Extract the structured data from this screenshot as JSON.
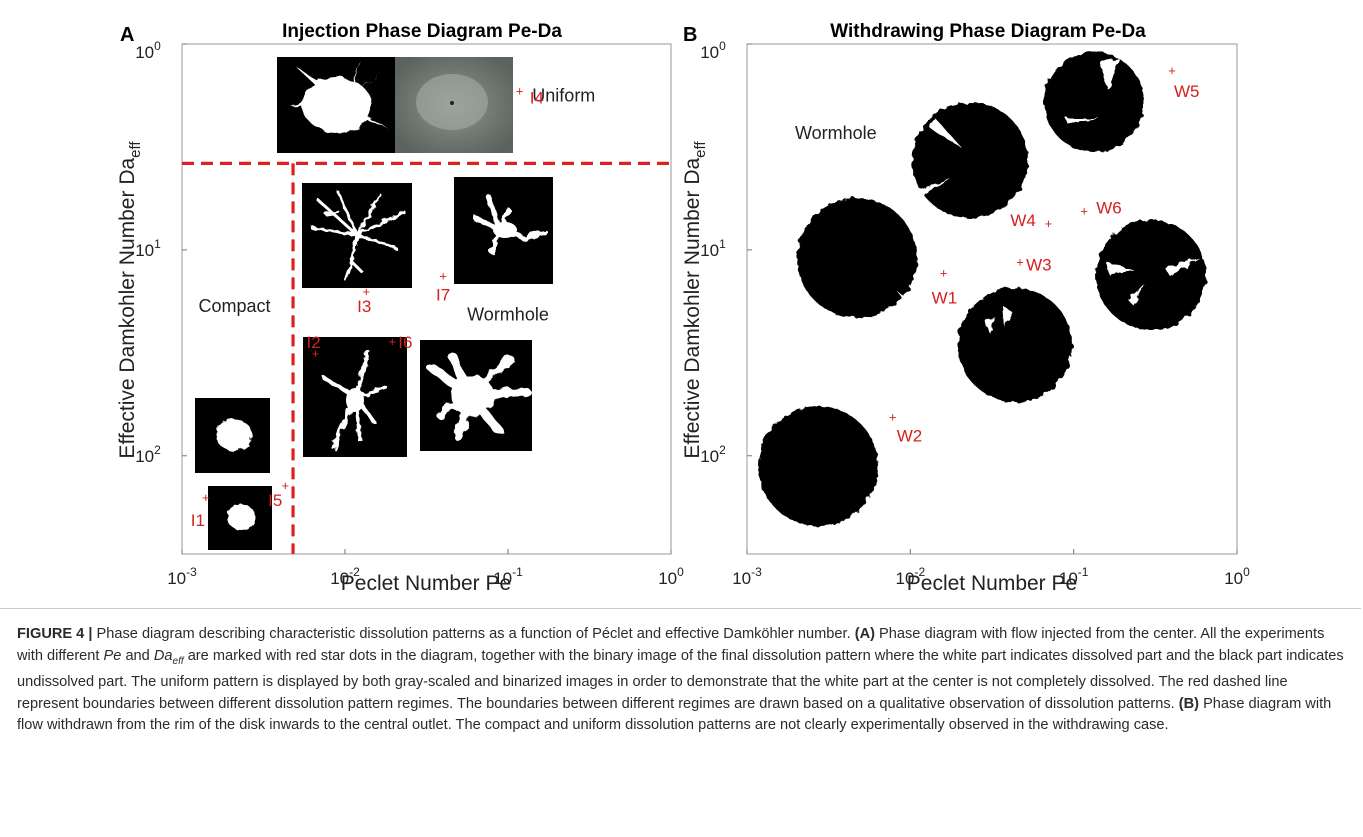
{
  "chart_data": [
    {
      "type": "scatter",
      "panel_label": "A",
      "title": "Injection Phase Diagram Pe-Da",
      "xlabel": "Peclet Number Pe",
      "ylabel": "Effective Damkohler Number Da",
      "ylabel_sub": "eff",
      "x_scale": "log",
      "y_scale": "log",
      "y_inverted": true,
      "xlim": [
        0.001,
        1
      ],
      "ylim": [
        1,
        300
      ],
      "x_ticks": [
        {
          "base": "10",
          "exp": "-3"
        },
        {
          "base": "10",
          "exp": "-2"
        },
        {
          "base": "10",
          "exp": "-1"
        },
        {
          "base": "10",
          "exp": "0"
        }
      ],
      "y_ticks": [
        {
          "base": "10",
          "exp": "0"
        },
        {
          "base": "10",
          "exp": "1"
        },
        {
          "base": "10",
          "exp": "2"
        }
      ],
      "points": [
        {
          "label": "I1",
          "x": 0.0014,
          "y": 160
        },
        {
          "label": "I2",
          "x": 0.0066,
          "y": 32
        },
        {
          "label": "I3",
          "x": 0.0135,
          "y": 16
        },
        {
          "label": "I4",
          "x": 0.118,
          "y": 1.7
        },
        {
          "label": "I5",
          "x": 0.0043,
          "y": 140
        },
        {
          "label": "I6",
          "x": 0.0195,
          "y": 28
        },
        {
          "label": "I7",
          "x": 0.04,
          "y": 13.5
        }
      ],
      "boundaries": [
        {
          "type": "horizontal",
          "y": 3.8
        },
        {
          "type": "vertical",
          "x": 0.0048,
          "from_y": 3.8
        }
      ],
      "regions": [
        {
          "label": "Uniform",
          "x": 0.22,
          "y": 1.9
        },
        {
          "label": "Compact",
          "x": 0.0021,
          "y": 20
        },
        {
          "label": "Wormhole",
          "x": 0.1,
          "y": 22
        }
      ]
    },
    {
      "type": "scatter",
      "panel_label": "B",
      "title": "Withdrawing Phase Diagram Pe-Da",
      "xlabel": "Peclet Number Pe",
      "ylabel": "Effective Damkohler Number Da",
      "ylabel_sub": "eff",
      "x_scale": "log",
      "y_scale": "log",
      "y_inverted": true,
      "xlim": [
        0.001,
        1
      ],
      "ylim": [
        1,
        300
      ],
      "x_ticks": [
        {
          "base": "10",
          "exp": "-3"
        },
        {
          "base": "10",
          "exp": "-2"
        },
        {
          "base": "10",
          "exp": "-1"
        },
        {
          "base": "10",
          "exp": "0"
        }
      ],
      "y_ticks": [
        {
          "base": "10",
          "exp": "0"
        },
        {
          "base": "10",
          "exp": "1"
        },
        {
          "base": "10",
          "exp": "2"
        }
      ],
      "points": [
        {
          "label": "W1",
          "x": 0.016,
          "y": 13
        },
        {
          "label": "W2",
          "x": 0.0078,
          "y": 65
        },
        {
          "label": "W3",
          "x": 0.047,
          "y": 11.5
        },
        {
          "label": "W4",
          "x": 0.07,
          "y": 7.5
        },
        {
          "label": "W5",
          "x": 0.4,
          "y": 1.35
        },
        {
          "label": "W6",
          "x": 0.116,
          "y": 6.5
        }
      ],
      "regions": [
        {
          "label": "Wormhole",
          "x": 0.0035,
          "y": 2.9
        }
      ]
    }
  ],
  "caption": {
    "label": "FIGURE 4 |",
    "p1": " Phase diagram describing characteristic dissolution patterns as a function of Péclet and effective Damköhler number. ",
    "a_label": "(A)",
    "p2": " Phase diagram with flow injected from the center. All the experiments with different ",
    "pe": "Pe",
    "p3": " and ",
    "da": "Da",
    "da_sub": "eff",
    "p4": " are marked with red star dots in the diagram, together with the binary image of the final dissolution pattern where the white part indicates dissolved part and the black part indicates undissolved part. The uniform pattern is displayed by both gray-scaled and binarized images in order to demonstrate that the white part at the center is not completely dissolved. The red dashed line represent boundaries between different dissolution pattern regimes. The boundaries between different regimes are drawn based on a qualitative observation of dissolution patterns. ",
    "b_label": "(B)",
    "p5": " Phase diagram with flow withdrawn from the rim of the disk inwards to the central outlet. The compact and uniform dissolution patterns are not clearly experimentally observed in the withdrawing case."
  }
}
